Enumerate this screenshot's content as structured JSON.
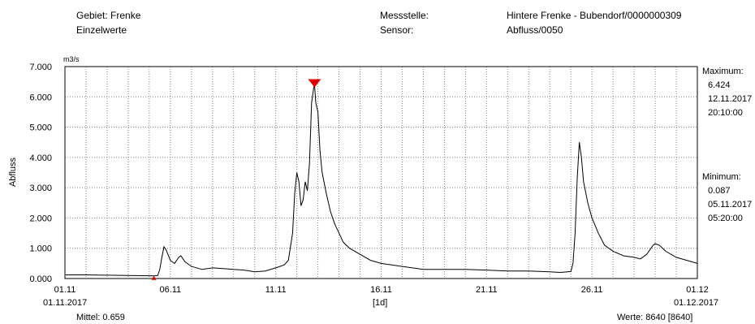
{
  "header": {
    "gebiet": "Gebiet: Frenke",
    "einzelwerte": "Einzelwerte",
    "messstelle_label": "Messstelle:",
    "messstelle_value": "Hintere Frenke - Bubendorf/0000000309",
    "sensor_label": "Sensor:",
    "sensor_value": "Abfluss/0050"
  },
  "footer": {
    "start_date": "01.11.2017",
    "interval": "[1d]",
    "end_date": "01.12.2017",
    "mittel": "Mittel: 0.659",
    "werte": "Werte: 8640 [8640]"
  },
  "stats": {
    "max_label": "Maximum:",
    "max_value": "6.424",
    "max_date": "12.11.2017",
    "max_time": "20:10:00",
    "min_label": "Minimum:",
    "min_value": "0.087",
    "min_date": "05.11.2017",
    "min_time": "05:20:00"
  },
  "colors": {
    "line": "#000000",
    "marker": "#e00000",
    "grid": "#808080"
  },
  "chart_data": {
    "type": "line",
    "unit": "m3/s",
    "ylabel": "Abfluss",
    "ylim": [
      0,
      7
    ],
    "xlim": [
      0,
      30
    ],
    "yticks": [
      "0.000",
      "1.000",
      "2.000",
      "3.000",
      "4.000",
      "5.000",
      "6.000",
      "7.000"
    ],
    "xticks": [
      {
        "x": 0,
        "label": "01.11"
      },
      {
        "x": 5,
        "label": "06.11"
      },
      {
        "x": 10,
        "label": "11.11"
      },
      {
        "x": 15,
        "label": "16.11"
      },
      {
        "x": 20,
        "label": "21.11"
      },
      {
        "x": 25,
        "label": "26.11"
      },
      {
        "x": 30,
        "label": "01.12"
      }
    ],
    "grid": true,
    "x_unit": "days since 01.11.2017",
    "markers": [
      {
        "type": "maximum",
        "x": 11.84,
        "y": 6.424
      },
      {
        "type": "minimum",
        "x": 4.22,
        "y": 0.087
      }
    ],
    "series": [
      {
        "values": [
          [
            0,
            0.12
          ],
          [
            1,
            0.12
          ],
          [
            2,
            0.11
          ],
          [
            3,
            0.1
          ],
          [
            4,
            0.09
          ],
          [
            4.22,
            0.087
          ],
          [
            4.4,
            0.1
          ],
          [
            4.5,
            0.3
          ],
          [
            4.6,
            0.7
          ],
          [
            4.7,
            1.05
          ],
          [
            4.8,
            0.95
          ],
          [
            5.0,
            0.6
          ],
          [
            5.2,
            0.5
          ],
          [
            5.4,
            0.7
          ],
          [
            5.5,
            0.75
          ],
          [
            5.7,
            0.55
          ],
          [
            6.0,
            0.4
          ],
          [
            6.5,
            0.3
          ],
          [
            7.0,
            0.35
          ],
          [
            7.5,
            0.33
          ],
          [
            8.0,
            0.3
          ],
          [
            8.5,
            0.28
          ],
          [
            9.0,
            0.22
          ],
          [
            9.5,
            0.25
          ],
          [
            10.0,
            0.35
          ],
          [
            10.4,
            0.45
          ],
          [
            10.6,
            0.6
          ],
          [
            10.8,
            1.5
          ],
          [
            10.9,
            2.8
          ],
          [
            11.0,
            3.5
          ],
          [
            11.1,
            3.2
          ],
          [
            11.2,
            2.4
          ],
          [
            11.3,
            2.6
          ],
          [
            11.4,
            3.2
          ],
          [
            11.5,
            2.9
          ],
          [
            11.6,
            3.8
          ],
          [
            11.7,
            5.8
          ],
          [
            11.8,
            6.3
          ],
          [
            11.84,
            6.424
          ],
          [
            11.9,
            5.8
          ],
          [
            12.0,
            5.5
          ],
          [
            12.1,
            4.2
          ],
          [
            12.2,
            3.5
          ],
          [
            12.4,
            2.8
          ],
          [
            12.6,
            2.2
          ],
          [
            12.8,
            1.8
          ],
          [
            13.0,
            1.5
          ],
          [
            13.2,
            1.2
          ],
          [
            13.5,
            1.0
          ],
          [
            14.0,
            0.8
          ],
          [
            14.5,
            0.6
          ],
          [
            15.0,
            0.5
          ],
          [
            16.0,
            0.4
          ],
          [
            17.0,
            0.3
          ],
          [
            18.0,
            0.3
          ],
          [
            19.0,
            0.3
          ],
          [
            20.0,
            0.28
          ],
          [
            21.0,
            0.25
          ],
          [
            22.0,
            0.25
          ],
          [
            23.0,
            0.22
          ],
          [
            23.5,
            0.2
          ],
          [
            24.0,
            0.23
          ],
          [
            24.1,
            0.5
          ],
          [
            24.2,
            1.5
          ],
          [
            24.3,
            3.3
          ],
          [
            24.4,
            4.5
          ],
          [
            24.5,
            4.0
          ],
          [
            24.6,
            3.2
          ],
          [
            24.8,
            2.5
          ],
          [
            25.0,
            2.0
          ],
          [
            25.3,
            1.5
          ],
          [
            25.6,
            1.1
          ],
          [
            26.0,
            0.9
          ],
          [
            26.5,
            0.75
          ],
          [
            27.0,
            0.7
          ],
          [
            27.3,
            0.65
          ],
          [
            27.6,
            0.8
          ],
          [
            27.8,
            1.0
          ],
          [
            27.9,
            1.1
          ],
          [
            28.0,
            1.15
          ],
          [
            28.2,
            1.1
          ],
          [
            28.5,
            0.9
          ],
          [
            29.0,
            0.7
          ],
          [
            29.5,
            0.6
          ],
          [
            30.0,
            0.5
          ]
        ]
      }
    ]
  }
}
